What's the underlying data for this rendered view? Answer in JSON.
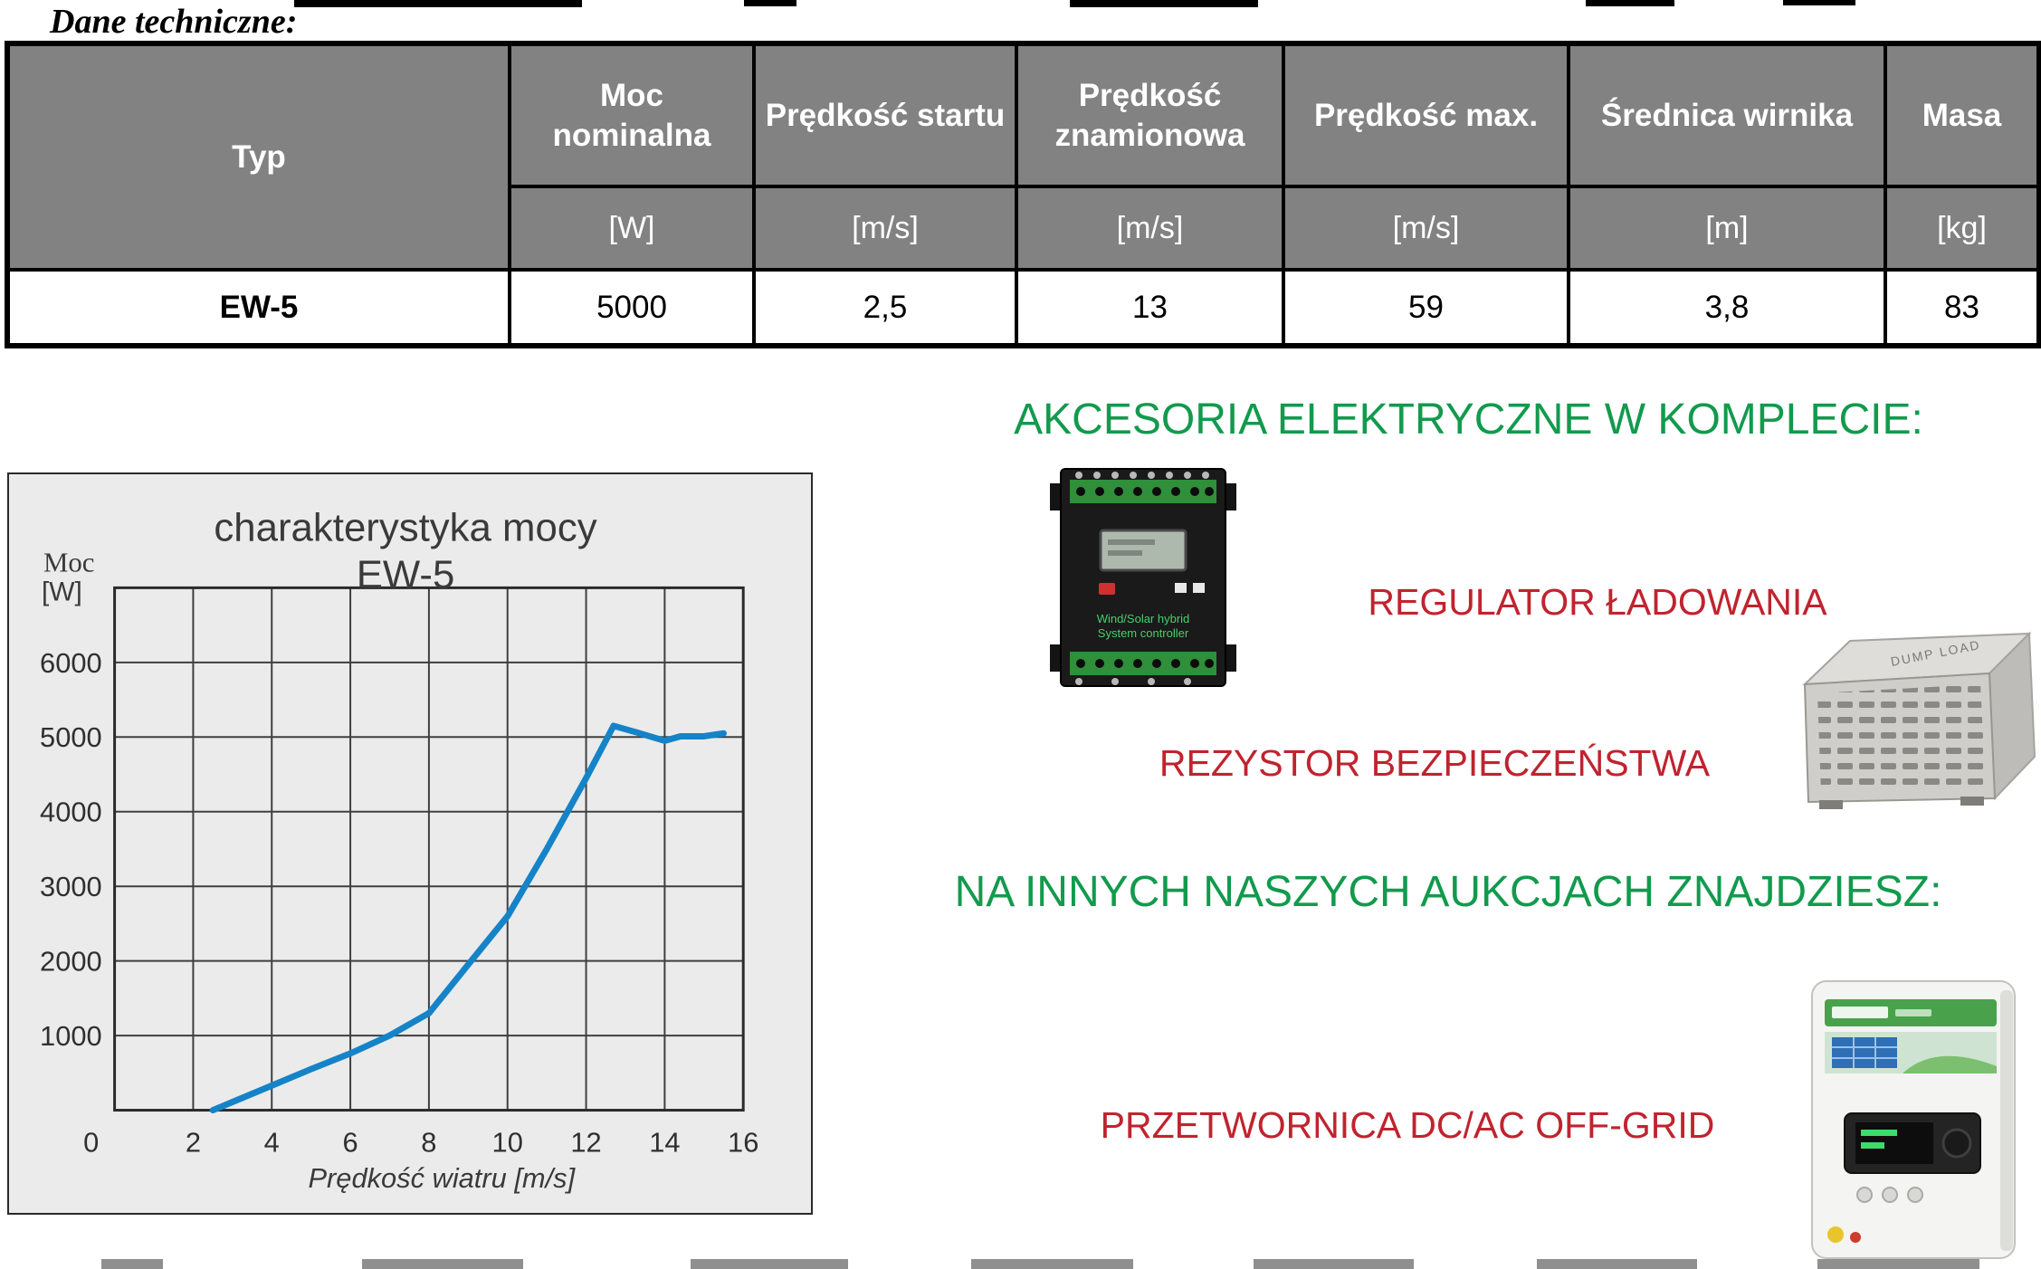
{
  "title": "Dane techniczne:",
  "table": {
    "headers": [
      "Typ",
      "Moc nominalna",
      "Prędkość startu",
      "Prędkość znamionowa",
      "Prędkość max.",
      "Średnica wirnika",
      "Masa"
    ],
    "units": [
      "[W]",
      "[m/s]",
      "[m/s]",
      "[m/s]",
      "[m]",
      "[kg]"
    ],
    "row": {
      "typ": "EW-5",
      "moc_nominalna": "5000",
      "predkosc_startu": "2,5",
      "predkosc_znamionowa": "13",
      "predkosc_max": "59",
      "srednica_wirnika": "3,8",
      "masa": "83"
    }
  },
  "chart_data": {
    "type": "line",
    "title": "charakterystyka mocy",
    "subtitle": "EW-5",
    "ylabel": "Moc",
    "ylabel_unit": "[W]",
    "xlabel": "Prędkość wiatru [m/s]",
    "xlim": [
      0,
      16
    ],
    "ylim": [
      0,
      7000
    ],
    "x_ticks": [
      0,
      2,
      4,
      6,
      8,
      10,
      12,
      14,
      16
    ],
    "y_ticks": [
      1000,
      2000,
      3000,
      4000,
      5000,
      6000
    ],
    "grid": true,
    "legend": "none",
    "line_color": "#1583c8",
    "series": [
      {
        "name": "moc",
        "x": [
          2.5,
          4,
          5,
          6,
          7,
          8,
          9,
          10,
          11,
          12,
          12.7,
          13.3,
          14,
          14.4,
          15,
          15.5
        ],
        "y": [
          0,
          330,
          550,
          760,
          1000,
          1300,
          1950,
          2600,
          3500,
          4450,
          5150,
          5060,
          4950,
          5010,
          5010,
          5050
        ]
      }
    ]
  },
  "right_column": {
    "accessories_heading": "AKCESORIA ELEKTRYCZNE W KOMPLECIE:",
    "regulator_label": "REGULATOR ŁADOWANIA",
    "resistor_label": "REZYSTOR BEZPIECZEŃSTWA",
    "auctions_heading": "NA INNYCH NASZYCH AUKCJACH ZNAJDZIESZ:",
    "inverter_label": "PRZETWORNICA DC/AC OFF-GRID"
  },
  "images": {
    "controller_line1": "Wind/Solar hybrid",
    "controller_line2": "System controller",
    "dump_load_text": "DUMP LOAD"
  },
  "colors": {
    "accent_green": "#129a4d",
    "accent_red": "#c0232f",
    "chart_line": "#1583c8",
    "table_header_bg": "#828282",
    "chart_panel_bg": "#ebebeb"
  }
}
